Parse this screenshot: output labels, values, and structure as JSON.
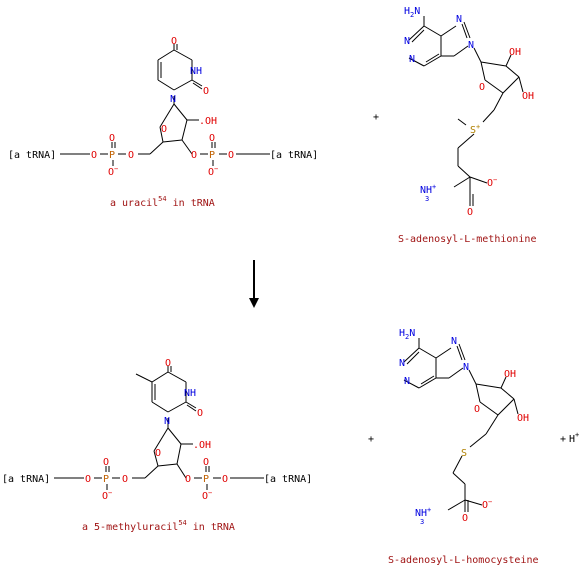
{
  "reaction": {
    "substrates": [
      {
        "name": "a uracil",
        "sup": "54",
        "suffix": " in tRNA"
      },
      {
        "name": "S-adenosyl-L-methionine"
      }
    ],
    "products": [
      {
        "name": "a 5-methyluracil",
        "sup": "54",
        "suffix": " in tRNA"
      },
      {
        "name": "S-adenosyl-L-homocysteine"
      },
      {
        "name": "H",
        "charge": "+"
      }
    ],
    "plus_sign": "+",
    "trna_label": "[a tRNA]",
    "arrow": "down",
    "colors": {
      "oxygen": "#e00000",
      "nitrogen": "#0000e0",
      "phosphorus": "#c06000",
      "sulfur": "#b08000",
      "caption": "#a01414"
    }
  }
}
